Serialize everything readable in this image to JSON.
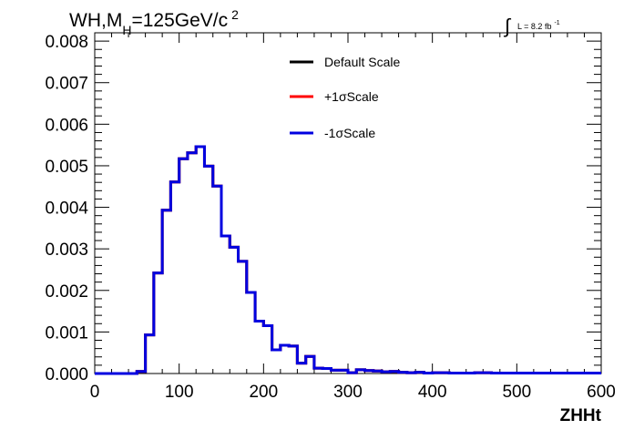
{
  "chart_data": {
    "type": "line",
    "title_prefix": "WH,M",
    "title_sub": "H",
    "title_main": "=125GeV/c",
    "title_sup": "2",
    "lumi_label": "L = 8.2 fb",
    "lumi_sup": "-1",
    "xlabel": "ZHHt",
    "ylabel": "",
    "xlim": [
      0,
      600
    ],
    "ylim": [
      0,
      0.0082
    ],
    "xticks": [
      0,
      100,
      200,
      300,
      400,
      500,
      600
    ],
    "xtick_labels": [
      "0",
      "100",
      "200",
      "300",
      "400",
      "500",
      "600"
    ],
    "yticks": [
      0,
      0.001,
      0.002,
      0.003,
      0.004,
      0.005,
      0.006,
      0.007,
      0.008
    ],
    "ytick_labels": [
      "0.000",
      "0.001",
      "0.002",
      "0.003",
      "0.004",
      "0.005",
      "0.006",
      "0.007",
      "0.008"
    ],
    "legend_position": "top-right",
    "bin_edges": [
      0,
      10,
      20,
      30,
      40,
      50,
      60,
      70,
      80,
      90,
      100,
      110,
      120,
      130,
      140,
      150,
      160,
      170,
      180,
      190,
      200,
      210,
      220,
      230,
      240,
      250,
      260,
      270,
      280,
      290,
      300,
      310,
      320,
      330,
      340,
      350,
      360,
      370,
      380,
      390,
      400,
      410,
      420,
      430,
      440,
      450,
      460,
      470,
      480,
      490,
      500,
      510,
      520,
      530,
      540,
      550,
      560,
      570,
      580,
      590,
      600
    ],
    "series": [
      {
        "name": "Default Scale",
        "color": "#000000",
        "values": [
          0,
          0,
          0,
          0,
          0,
          5e-05,
          0.00093,
          0.00242,
          0.00393,
          0.00461,
          0.00517,
          0.00531,
          0.00546,
          0.00499,
          0.00451,
          0.00331,
          0.00304,
          0.0027,
          0.00195,
          0.00126,
          0.00115,
          0.00057,
          0.00068,
          0.00066,
          0.00025,
          0.00041,
          0.00013,
          0.00012,
          8e-05,
          8e-05,
          2e-05,
          9e-05,
          7e-05,
          6e-05,
          4e-05,
          5e-05,
          3e-05,
          2e-05,
          3e-05,
          1e-05,
          2e-05,
          2e-05,
          1e-05,
          1e-05,
          1e-05,
          2e-05,
          2e-05,
          1e-05,
          1e-05,
          1e-05,
          1e-05,
          1e-05,
          1e-05,
          1e-05,
          1e-05,
          1e-05,
          1e-05,
          1e-05,
          1e-05,
          1e-05
        ]
      },
      {
        "name": "+1σScale",
        "color": "#ff0000",
        "values": [
          0,
          0,
          0,
          0,
          0,
          5e-05,
          0.00093,
          0.00242,
          0.00393,
          0.00461,
          0.00517,
          0.00531,
          0.00546,
          0.00499,
          0.00451,
          0.00331,
          0.00304,
          0.0027,
          0.00195,
          0.00126,
          0.00115,
          0.00057,
          0.00068,
          0.00066,
          0.00025,
          0.00041,
          0.00013,
          0.00012,
          8e-05,
          8e-05,
          2e-05,
          9e-05,
          7e-05,
          6e-05,
          4e-05,
          5e-05,
          3e-05,
          2e-05,
          3e-05,
          1e-05,
          2e-05,
          2e-05,
          1e-05,
          1e-05,
          1e-05,
          2e-05,
          2e-05,
          1e-05,
          1e-05,
          1e-05,
          1e-05,
          1e-05,
          1e-05,
          1e-05,
          1e-05,
          1e-05,
          1e-05,
          1e-05,
          1e-05,
          1e-05
        ]
      },
      {
        "name": "-1σScale",
        "color": "#0000e0",
        "values": [
          0,
          0,
          0,
          0,
          0,
          5e-05,
          0.00093,
          0.00242,
          0.00393,
          0.00461,
          0.00517,
          0.00531,
          0.00546,
          0.00499,
          0.00451,
          0.00331,
          0.00304,
          0.0027,
          0.00195,
          0.00126,
          0.00115,
          0.00057,
          0.00068,
          0.00066,
          0.00025,
          0.00041,
          0.00013,
          0.00012,
          8e-05,
          8e-05,
          2e-05,
          9e-05,
          7e-05,
          6e-05,
          4e-05,
          5e-05,
          3e-05,
          2e-05,
          3e-05,
          1e-05,
          2e-05,
          2e-05,
          1e-05,
          1e-05,
          1e-05,
          2e-05,
          2e-05,
          1e-05,
          1e-05,
          1e-05,
          1e-05,
          1e-05,
          1e-05,
          1e-05,
          1e-05,
          1e-05,
          1e-05,
          1e-05,
          1e-05,
          1e-05
        ]
      }
    ]
  }
}
